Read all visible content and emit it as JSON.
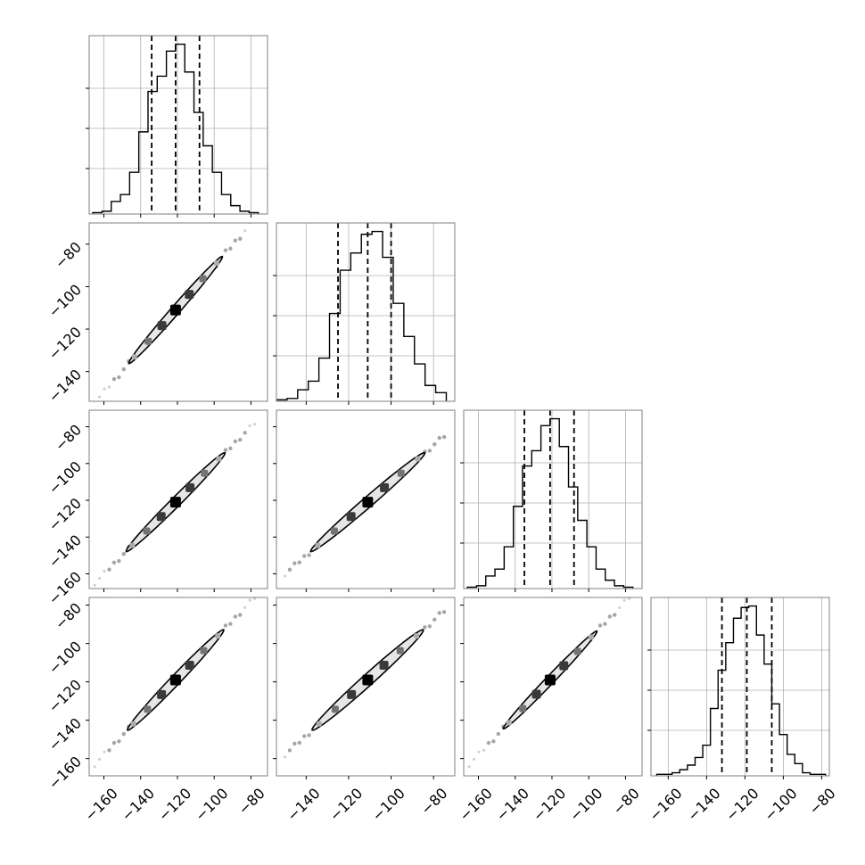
{
  "chart_data": {
    "type": "corner",
    "n_params": 4,
    "grid": true,
    "colors": {
      "line": "#000000",
      "grid": "#b0b0b0",
      "frame": "#7f7f7f",
      "density_low": "#e6e6e6",
      "density_high": "#000000"
    },
    "ticks": [
      {
        "values": [
          -160,
          -140,
          -120,
          -100,
          -80
        ],
        "labels": [
          "−160",
          "−140",
          "−120",
          "−100",
          "−80"
        ]
      },
      {
        "values": [
          -140,
          -120,
          -100,
          -80
        ],
        "labels": [
          "−140",
          "−120",
          "−100",
          "−80"
        ]
      },
      {
        "values": [
          -160,
          -140,
          -120,
          -100,
          -80
        ],
        "labels": [
          "−160",
          "−140",
          "−120",
          "−100",
          "−80"
        ]
      },
      {
        "values": [
          -160,
          -140,
          -120,
          -100,
          -80
        ],
        "labels": [
          "−160",
          "−140",
          "−120",
          "−100",
          "−80"
        ]
      }
    ],
    "ranges": [
      [
        -168,
        -71
      ],
      [
        -154,
        -70
      ],
      [
        -168,
        -71
      ],
      [
        -169,
        -76
      ]
    ],
    "histograms": [
      {
        "bin_edges": [
          -166,
          -161,
          -156,
          -151,
          -146,
          -141,
          -136,
          -131,
          -126,
          -121,
          -116,
          -111,
          -106,
          -101,
          -96,
          -91,
          -86,
          -81,
          -76
        ],
        "counts": [
          1,
          2,
          9,
          14,
          30,
          59,
          88,
          99,
          117,
          122,
          102,
          73,
          49,
          30,
          14,
          6,
          2,
          1
        ],
        "quantiles": [
          -134,
          -121,
          -108
        ]
      },
      {
        "bin_edges": [
          -154,
          -149,
          -144,
          -139,
          -134,
          -129,
          -124,
          -119,
          -114,
          -109,
          -104,
          -99,
          -94,
          -89,
          -84,
          -79,
          -74
        ],
        "counts": [
          1,
          2,
          8,
          14,
          30,
          61,
          91,
          103,
          116,
          118,
          100,
          68,
          45,
          26,
          11,
          6
        ],
        "quantiles": [
          -125,
          -111,
          -100
        ]
      },
      {
        "bin_edges": [
          -166,
          -161,
          -156,
          -151,
          -146,
          -141,
          -136,
          -131,
          -126,
          -121,
          -116,
          -111,
          -106,
          -101,
          -96,
          -91,
          -86,
          -81,
          -76
        ],
        "counts": [
          1,
          2,
          9,
          14,
          30,
          59,
          88,
          99,
          117,
          122,
          102,
          73,
          49,
          30,
          14,
          6,
          2,
          1
        ],
        "quantiles": [
          -135,
          -121,
          -108
        ]
      },
      {
        "bin_edges": [
          -166,
          -162,
          -158,
          -154,
          -150,
          -146,
          -142,
          -138,
          -134,
          -130,
          -126,
          -122,
          -118,
          -114,
          -110,
          -106,
          -102,
          -98,
          -94,
          -90,
          -86,
          -82,
          -78
        ],
        "counts": [
          1,
          1,
          2,
          4,
          7,
          12,
          20,
          44,
          69,
          87,
          103,
          110,
          111,
          92,
          73,
          47,
          27,
          14,
          8,
          2,
          1,
          1
        ],
        "quantiles": [
          -132,
          -119,
          -106
        ]
      }
    ],
    "scatter_panels": [
      {
        "x_param": 0,
        "y_param": 1,
        "center": [
          -121,
          -111
        ],
        "slope": 0.99,
        "half_length": 36,
        "half_width": 2.2,
        "tail_min": -165,
        "tail_max": -78
      },
      {
        "x_param": 0,
        "y_param": 2,
        "center": [
          -121,
          -121
        ],
        "slope": 1.0,
        "half_length": 38,
        "half_width": 2.6,
        "tail_min": -165,
        "tail_max": -78
      },
      {
        "x_param": 1,
        "y_param": 2,
        "center": [
          -111,
          -121
        ],
        "slope": 1.0,
        "half_length": 38,
        "half_width": 2.6,
        "tail_min": -150,
        "tail_max": -75
      },
      {
        "x_param": 0,
        "y_param": 3,
        "center": [
          -121,
          -119
        ],
        "slope": 1.0,
        "half_length": 37,
        "half_width": 2.6,
        "tail_min": -165,
        "tail_max": -78
      },
      {
        "x_param": 1,
        "y_param": 3,
        "center": [
          -111,
          -119
        ],
        "slope": 1.0,
        "half_length": 37,
        "half_width": 2.8,
        "tail_min": -150,
        "tail_max": -75
      },
      {
        "x_param": 2,
        "y_param": 3,
        "center": [
          -121,
          -119
        ],
        "slope": 1.0,
        "half_length": 36,
        "half_width": 2.2,
        "tail_min": -165,
        "tail_max": -78
      }
    ]
  }
}
